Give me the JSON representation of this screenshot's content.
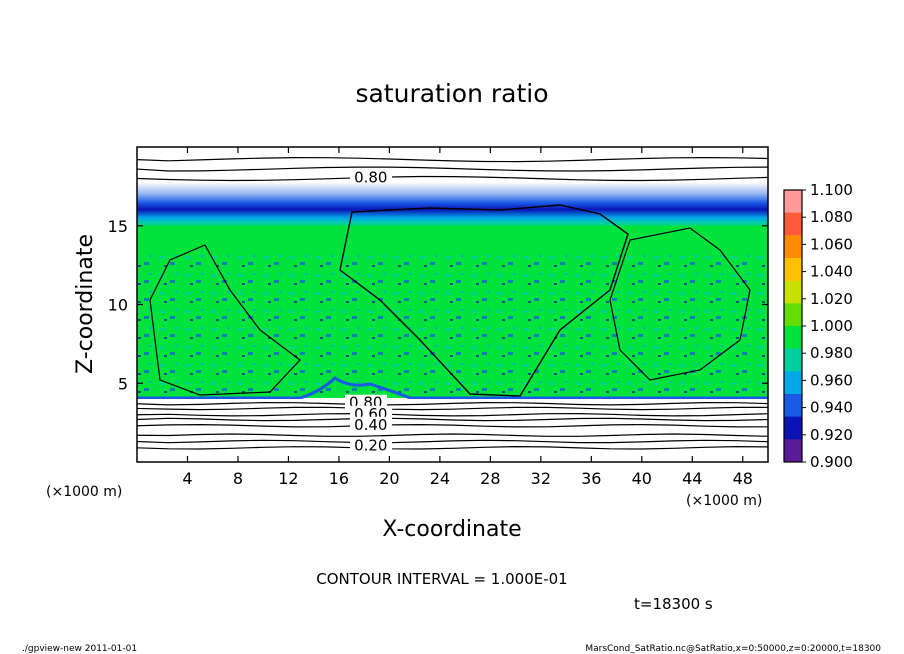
{
  "chart_data": {
    "type": "heatmap",
    "title": "saturation ratio",
    "xlabel": "X-coordinate",
    "ylabel": "Z-coordinate",
    "x_unit_left": "(×1000 m)",
    "x_unit_right": "(×1000 m)",
    "xlim": [
      0,
      50
    ],
    "ylim": [
      0,
      20
    ],
    "x_ticks": [
      4,
      8,
      12,
      16,
      20,
      24,
      28,
      32,
      36,
      40,
      44,
      48
    ],
    "y_ticks": [
      5,
      10,
      15
    ],
    "contour_labels": [
      {
        "text": "0.80",
        "x": 17.2,
        "z": 18.0
      },
      {
        "text": "0.80",
        "x": 16.8,
        "z": 3.7
      },
      {
        "text": "0.60",
        "x": 17.2,
        "z": 3.0
      },
      {
        "text": "0.40",
        "x": 17.2,
        "z": 2.3
      },
      {
        "text": "0.20",
        "x": 17.2,
        "z": 1.0
      }
    ],
    "colorbar": {
      "ticks": [
        "1.100",
        "1.080",
        "1.060",
        "1.040",
        "1.020",
        "1.000",
        "0.980",
        "0.960",
        "0.940",
        "0.920",
        "0.900"
      ],
      "colors": [
        "#ff9a9a",
        "#ff5a3c",
        "#ff8c00",
        "#ffc000",
        "#c8e000",
        "#66dd00",
        "#00e23c",
        "#00d0a0",
        "#00a8e8",
        "#1a5ae6",
        "#0a14b4",
        "#5a1c96"
      ]
    },
    "contour_interval": "CONTOUR INTERVAL = 1.000E-01",
    "time_label": "t=18300 s"
  },
  "footer": {
    "left": "./gpview-new 2011-01-01",
    "right": "MarsCond_SatRatio.nc@SatRatio,x=0:50000,z=0:20000,t=18300"
  }
}
